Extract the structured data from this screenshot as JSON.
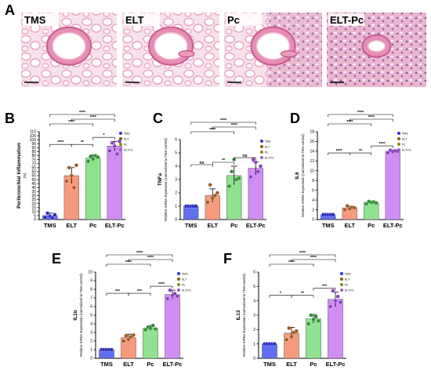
{
  "figure": {
    "histology": [
      {
        "letter": "A"
      },
      {
        "label": "TMS"
      },
      {
        "label": "ELT"
      },
      {
        "label": "Pc"
      },
      {
        "label": "ELT-Pc"
      }
    ]
  },
  "legend": {
    "items": [
      {
        "name": "TMS",
        "color": "#3333dd"
      },
      {
        "name": "ELT",
        "color": "#8a5a1a"
      },
      {
        "name": "Pc",
        "color": "#8a8a10"
      },
      {
        "name": "ELT-Pc",
        "color": "#9b5ccf"
      }
    ]
  },
  "chart_data": [
    {
      "letter": "B",
      "type": "bar",
      "categories": [
        "TMS",
        "ELT",
        "Pc",
        "ELT-Pc"
      ],
      "values": [
        5,
        55,
        77,
        92
      ],
      "errors": [
        3,
        10,
        4,
        6
      ],
      "points": [
        [
          3,
          8,
          4,
          2,
          6
        ],
        [
          48,
          65,
          55,
          40,
          68
        ],
        [
          73,
          79,
          76,
          80,
          78
        ],
        [
          86,
          96,
          92,
          82,
          98
        ]
      ],
      "colors": [
        "#6070f0",
        "#f59a7d",
        "#8fe28f",
        "#d08ef5"
      ],
      "ylabel": "Peribronchial Inflammation",
      "ylabel_sub": "(%)",
      "ylim": [
        0,
        110
      ],
      "yticks": [
        0,
        5,
        10,
        15,
        20,
        25,
        30,
        35,
        40,
        45,
        50,
        55,
        60,
        65,
        70,
        75,
        80,
        85,
        90,
        95,
        100,
        105,
        110
      ],
      "significance": [
        {
          "from": 0,
          "to": 1,
          "label": "****"
        },
        {
          "from": 1,
          "to": 2,
          "label": "**"
        },
        {
          "from": 2,
          "to": 3,
          "label": "*"
        },
        {
          "from": 0,
          "to": 2,
          "label": "****"
        },
        {
          "from": 1,
          "to": 3,
          "label": "****"
        },
        {
          "from": 0,
          "to": 3,
          "label": "****"
        }
      ]
    },
    {
      "letter": "C",
      "type": "bar",
      "categories": [
        "TMS",
        "ELT",
        "Pc",
        "ELT-Pc"
      ],
      "values": [
        1.0,
        1.8,
        3.3,
        3.85
      ],
      "errors": [
        0.05,
        0.5,
        0.7,
        0.5
      ],
      "points": [
        [
          1,
          1,
          1,
          1,
          1
        ],
        [
          1.3,
          2.6,
          1.6,
          1.8,
          2.0
        ],
        [
          2.5,
          3.6,
          4.5,
          3.0,
          3.1
        ],
        [
          3.2,
          4.5,
          4.3,
          3.6,
          4.0
        ]
      ],
      "colors": [
        "#6070f0",
        "#f59a7d",
        "#8fe28f",
        "#d08ef5"
      ],
      "ylabel": "TNFa",
      "ylabel_sub": "Relative mRNA Expression (normalized to TMS control)",
      "ylim": [
        0,
        6
      ],
      "yticks": [
        0,
        1,
        2,
        3,
        4,
        5,
        6
      ],
      "significance": [
        {
          "from": 0,
          "to": 1,
          "label": "ns"
        },
        {
          "from": 1,
          "to": 2,
          "label": "**"
        },
        {
          "from": 2,
          "to": 3,
          "label": "ns"
        },
        {
          "from": 0,
          "to": 2,
          "label": "****"
        },
        {
          "from": 1,
          "to": 3,
          "label": "****"
        },
        {
          "from": 0,
          "to": 3,
          "label": "****"
        }
      ]
    },
    {
      "letter": "D",
      "type": "bar",
      "categories": [
        "TMS",
        "ELT",
        "Pc",
        "ELT-Pc"
      ],
      "values": [
        1.0,
        2.4,
        3.5,
        14.0
      ],
      "errors": [
        0.05,
        0.3,
        0.3,
        0.3
      ],
      "points": [
        [
          1,
          1,
          1,
          1,
          1
        ],
        [
          2.0,
          2.8,
          2.2,
          2.5,
          2.4
        ],
        [
          3.2,
          3.7,
          3.5,
          3.6,
          3.4
        ],
        [
          13.7,
          14.2,
          13.9,
          14.1,
          14.0
        ]
      ],
      "colors": [
        "#6070f0",
        "#f59a7d",
        "#8fe28f",
        "#d08ef5"
      ],
      "ylabel": "IL6",
      "ylabel_sub": "Relative mRNA Expression (normalized to TMS control)",
      "ylim": [
        0,
        18
      ],
      "yticks": [
        0,
        2,
        4,
        6,
        8,
        10,
        12,
        14,
        16,
        18
      ],
      "significance": [
        {
          "from": 0,
          "to": 1,
          "label": "****"
        },
        {
          "from": 1,
          "to": 2,
          "label": "**"
        },
        {
          "from": 2,
          "to": 3,
          "label": "****"
        },
        {
          "from": 0,
          "to": 2,
          "label": "****"
        },
        {
          "from": 1,
          "to": 3,
          "label": "****"
        },
        {
          "from": 0,
          "to": 3,
          "label": "****"
        }
      ]
    },
    {
      "letter": "E",
      "type": "bar",
      "categories": [
        "TMS",
        "ELT",
        "Pc",
        "ELT-Pc"
      ],
      "values": [
        1.0,
        2.4,
        3.5,
        7.4
      ],
      "errors": [
        0.05,
        0.4,
        0.3,
        0.5
      ],
      "points": [
        [
          1,
          1,
          1,
          1,
          1
        ],
        [
          2.0,
          2.6,
          2.2,
          2.5,
          2.7
        ],
        [
          3.3,
          3.6,
          3.5,
          3.8,
          3.4
        ],
        [
          6.9,
          7.9,
          7.3,
          7.5,
          7.2
        ]
      ],
      "colors": [
        "#6070f0",
        "#f59a7d",
        "#8fe28f",
        "#d08ef5"
      ],
      "ylabel": "IL1b",
      "ylabel_sub": "Relative mRNA Expression (normalized to TMS control)",
      "ylim": [
        0,
        10
      ],
      "yticks": [
        0,
        1,
        2,
        3,
        4,
        5,
        6,
        7,
        8,
        9,
        10
      ],
      "significance": [
        {
          "from": 0,
          "to": 1,
          "label": "***"
        },
        {
          "from": 1,
          "to": 2,
          "label": "***"
        },
        {
          "from": 2,
          "to": 3,
          "label": "****"
        },
        {
          "from": 0,
          "to": 2,
          "label": "****"
        },
        {
          "from": 1,
          "to": 3,
          "label": "****"
        },
        {
          "from": 0,
          "to": 3,
          "label": "****"
        }
      ]
    },
    {
      "letter": "F",
      "type": "bar",
      "categories": [
        "TMS",
        "ELT",
        "Pc",
        "ELT-Pc"
      ],
      "values": [
        1.0,
        1.75,
        2.75,
        4.1
      ],
      "errors": [
        0.05,
        0.4,
        0.3,
        0.5
      ],
      "points": [
        [
          1,
          1,
          1,
          1,
          1
        ],
        [
          1.3,
          2.1,
          1.5,
          1.8,
          1.9
        ],
        [
          2.4,
          3.0,
          2.7,
          2.9,
          2.6
        ],
        [
          3.6,
          4.7,
          4.0,
          4.3,
          3.9
        ]
      ],
      "colors": [
        "#6070f0",
        "#f59a7d",
        "#8fe28f",
        "#d08ef5"
      ],
      "ylabel": "IL13",
      "ylabel_sub": "Relative mRNA Expression (normalized to TMS control)",
      "ylim": [
        0,
        6
      ],
      "yticks": [
        0,
        1,
        2,
        3,
        4,
        5,
        6
      ],
      "significance": [
        {
          "from": 0,
          "to": 1,
          "label": "*"
        },
        {
          "from": 1,
          "to": 2,
          "label": "**"
        },
        {
          "from": 2,
          "to": 3,
          "label": "***"
        },
        {
          "from": 0,
          "to": 2,
          "label": "****"
        },
        {
          "from": 1,
          "to": 3,
          "label": "****"
        },
        {
          "from": 0,
          "to": 3,
          "label": "****"
        }
      ]
    }
  ]
}
